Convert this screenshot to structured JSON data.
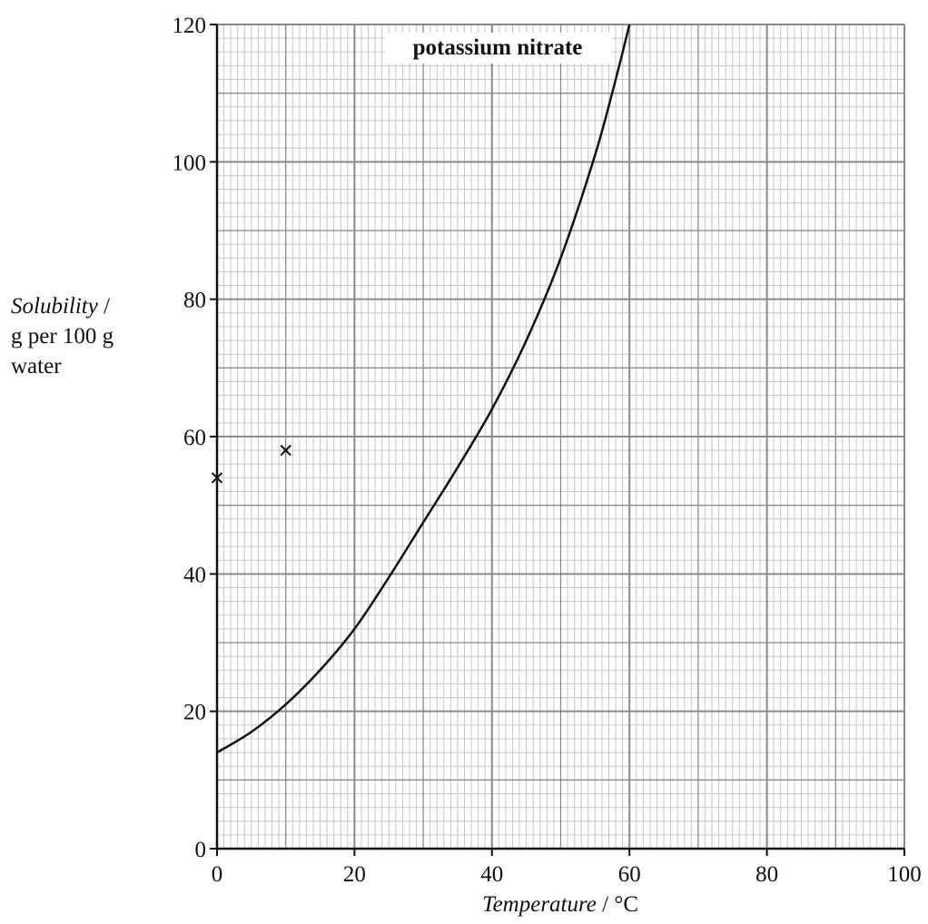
{
  "chart_data": {
    "type": "line",
    "title": "",
    "xlabel": {
      "italic": "Temperature",
      "unit": " / °C"
    },
    "ylabel": {
      "italic": "Solubility",
      "unit_line1": " /",
      "unit_line2": "g per 100 g",
      "unit_line3": "water"
    },
    "xlim": [
      0,
      100
    ],
    "ylim": [
      0,
      120
    ],
    "x_ticks": [
      0,
      20,
      40,
      60,
      80,
      100
    ],
    "y_ticks": [
      0,
      20,
      40,
      60,
      80,
      100,
      120
    ],
    "x_tick_labels": [
      "0",
      "20",
      "40",
      "60",
      "80",
      "100"
    ],
    "y_tick_labels": [
      "0",
      "20",
      "40",
      "60",
      "80",
      "100",
      "120"
    ],
    "grid": true,
    "series": [
      {
        "name": "potassium nitrate",
        "x": [
          0,
          5,
          10,
          15,
          20,
          25,
          30,
          35,
          40,
          45,
          50,
          55,
          58,
          60
        ],
        "y": [
          14,
          17,
          21,
          26,
          32,
          39.5,
          47.5,
          55.5,
          64,
          74,
          86,
          101,
          112,
          120
        ]
      }
    ],
    "points": [
      {
        "x": 0,
        "y": 54,
        "marker": "×"
      },
      {
        "x": 10,
        "y": 58,
        "marker": "×"
      }
    ],
    "colors": {
      "grid_minor": "#c6c6c6",
      "grid_major": "#8a8a8a",
      "axis": "#111111",
      "curve": "#111111"
    }
  }
}
